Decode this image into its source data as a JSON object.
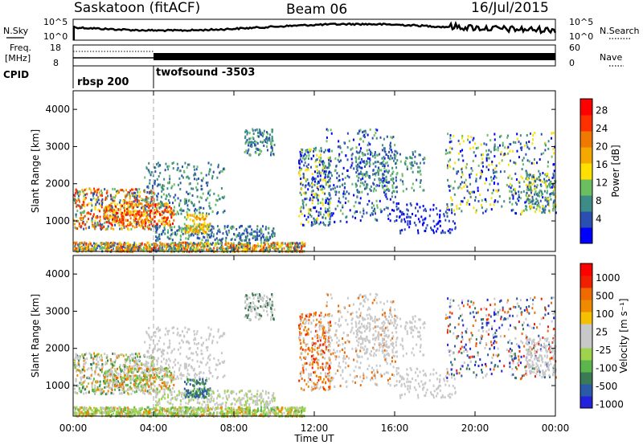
{
  "header": {
    "station": "Saskatoon (fitACF)",
    "beam": "Beam 06",
    "date": "16/Jul/2015"
  },
  "aux_panels": {
    "nsky_label": "N.Sky",
    "nsky_tick_top": "10^5",
    "nsky_tick_bottom": "10^0",
    "nsearch_label": "N.Search",
    "nsearch_tick_top": "10^5",
    "nsearch_tick_bottom": "10^0",
    "freq_label": "Freq.",
    "freq_unit": "[MHz]",
    "freq_tick_top": "18",
    "freq_tick_bottom": "8",
    "nave_label": "Nave",
    "nave_tick_top": "60",
    "nave_tick_bottom": "0",
    "cpid_label": "CPID",
    "cpid_1": "rbsp 200",
    "cpid_2": "twofsound -3503"
  },
  "chart_data": [
    {
      "type": "heatmap",
      "quantity": "power",
      "ylabel": "Slant Range [km]",
      "ylim": [
        180,
        4500
      ],
      "yticks": [
        1000,
        2000,
        3000,
        4000
      ],
      "xlabel": "Time UT",
      "xlim_hours": [
        0,
        24
      ],
      "xtick_labels": [
        "00:00",
        "04:00",
        "08:00",
        "12:00",
        "16:00",
        "20:00",
        "00:00"
      ],
      "colorbar_label": "Power [dB]",
      "colorbar_ticks": [
        "4",
        "8",
        "12",
        "16",
        "20",
        "24",
        "28"
      ],
      "colorbar_colors": [
        "#0000ff",
        "#2a4fb0",
        "#3e8c86",
        "#6bbf60",
        "#ffe000",
        "#f5a800",
        "#f07a00",
        "#ff3000",
        "#ff0000"
      ]
    },
    {
      "type": "heatmap",
      "quantity": "velocity",
      "ylabel": "Slant Range [km]",
      "ylim": [
        180,
        4500
      ],
      "yticks": [
        1000,
        2000,
        3000,
        4000
      ],
      "xlabel": "Time UT",
      "xlim_hours": [
        0,
        24
      ],
      "xtick_labels": [
        "00:00",
        "04:00",
        "08:00",
        "12:00",
        "16:00",
        "20:00",
        "00:00"
      ],
      "colorbar_label": "Velocity [m s⁻¹]",
      "colorbar_ticks": [
        "1000",
        "500",
        "100",
        "25",
        "-25",
        "-100",
        "-500",
        "-1000"
      ],
      "colorbar_colors": [
        "#2222dd",
        "#2a5aa8",
        "#3a7a55",
        "#5db64c",
        "#9ed34d",
        "#c8c8c8",
        "#c8c8c8",
        "#f5c000",
        "#f08a00",
        "#f06a00",
        "#f02000",
        "#ff0000"
      ]
    }
  ]
}
